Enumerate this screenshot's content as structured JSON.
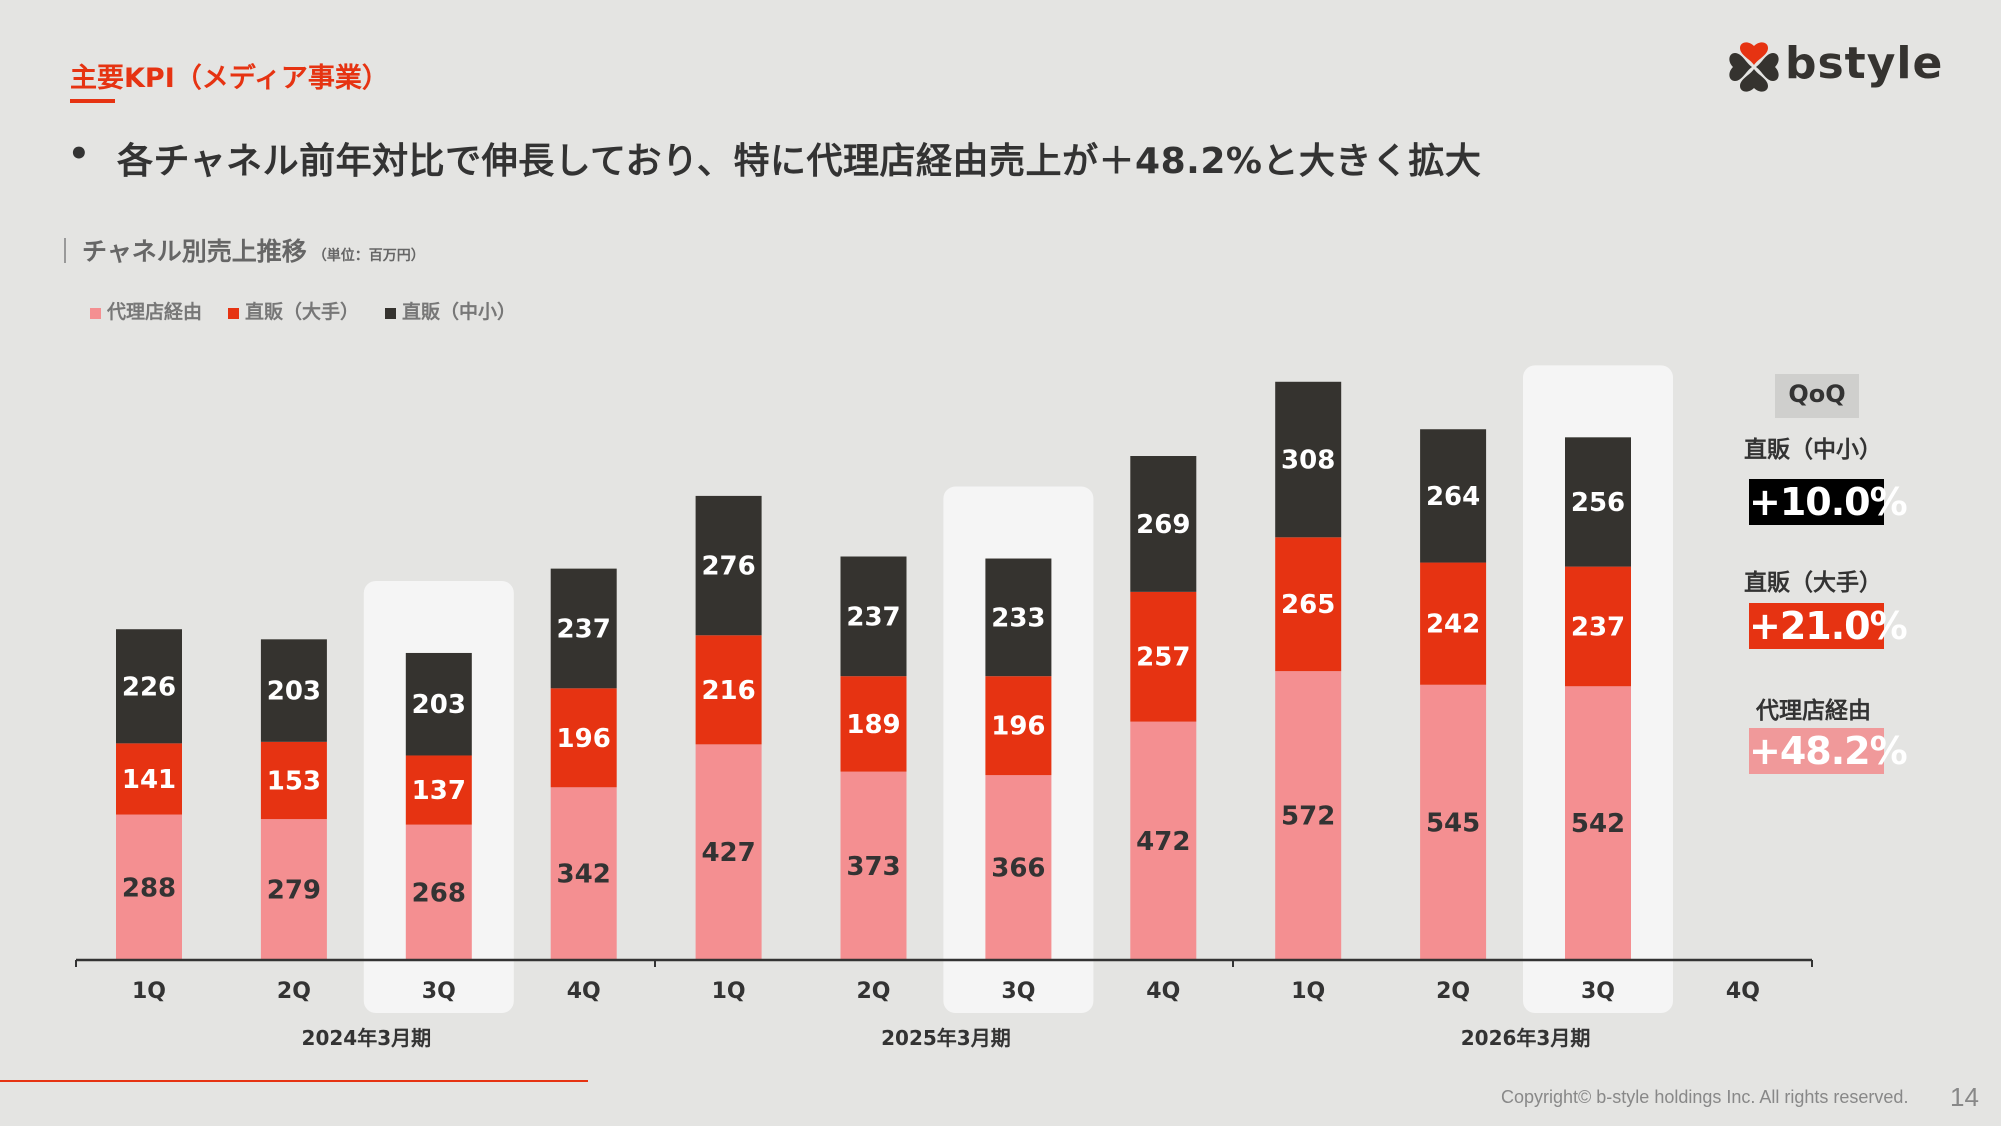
{
  "header": {
    "title": "主要KPI（メディア事業）",
    "bullet": "•",
    "headline": "各チャネル前年対比で伸長しており、特に代理店経由売上が＋48.2%と大きく拡大",
    "logo_text": "bstyle"
  },
  "section": {
    "title": "チャネル別売上推移",
    "unit": "（単位：百万円）"
  },
  "colors": {
    "agency": "#f48f91",
    "direct_large": "#e63312",
    "direct_sme": "#35332f",
    "accent": "#e63312",
    "highlight": "#f5f5f5"
  },
  "chart_data": {
    "type": "bar",
    "stacked": true,
    "title": "チャネル別売上推移",
    "unit": "百万円",
    "xlabel": "",
    "ylabel": "",
    "grid": false,
    "legend_position": "top-left",
    "categories": [
      "1Q",
      "2Q",
      "3Q",
      "4Q",
      "1Q",
      "2Q",
      "3Q",
      "4Q",
      "1Q",
      "2Q",
      "3Q",
      "4Q"
    ],
    "groups": [
      {
        "label": "2024年3月期",
        "span": [
          0,
          3
        ]
      },
      {
        "label": "2025年3月期",
        "span": [
          4,
          7
        ]
      },
      {
        "label": "2026年3月期",
        "span": [
          8,
          11
        ]
      }
    ],
    "highlighted_categories": [
      2,
      6,
      10
    ],
    "series": [
      {
        "name": "代理店経由",
        "color_key": "agency",
        "label_color": "#333333",
        "values": [
          288,
          279,
          268,
          342,
          427,
          373,
          366,
          472,
          572,
          545,
          542,
          null
        ]
      },
      {
        "name": "直販（大手）",
        "color_key": "direct_large",
        "label_color": "#ffffff",
        "values": [
          141,
          153,
          137,
          196,
          216,
          189,
          196,
          257,
          265,
          242,
          237,
          null
        ]
      },
      {
        "name": "直販（中小）",
        "color_key": "direct_sme",
        "label_color": "#ffffff",
        "values": [
          226,
          203,
          203,
          237,
          276,
          237,
          233,
          269,
          308,
          264,
          256,
          null
        ]
      }
    ],
    "ylim": [
      0,
      1200
    ]
  },
  "qoq": {
    "heading": "QoQ",
    "items": [
      {
        "label": "直販（中小）",
        "value": "+10.0%",
        "color": "#000000"
      },
      {
        "label": "直販（大手）",
        "value": "+21.0%",
        "color": "#e63312"
      },
      {
        "label": "代理店経由",
        "value": "+48.2%",
        "color": "#f0999a"
      }
    ]
  },
  "footer": {
    "copyright": "Copyright© b-style holdings Inc. All rights reserved.",
    "page_number": "14"
  }
}
